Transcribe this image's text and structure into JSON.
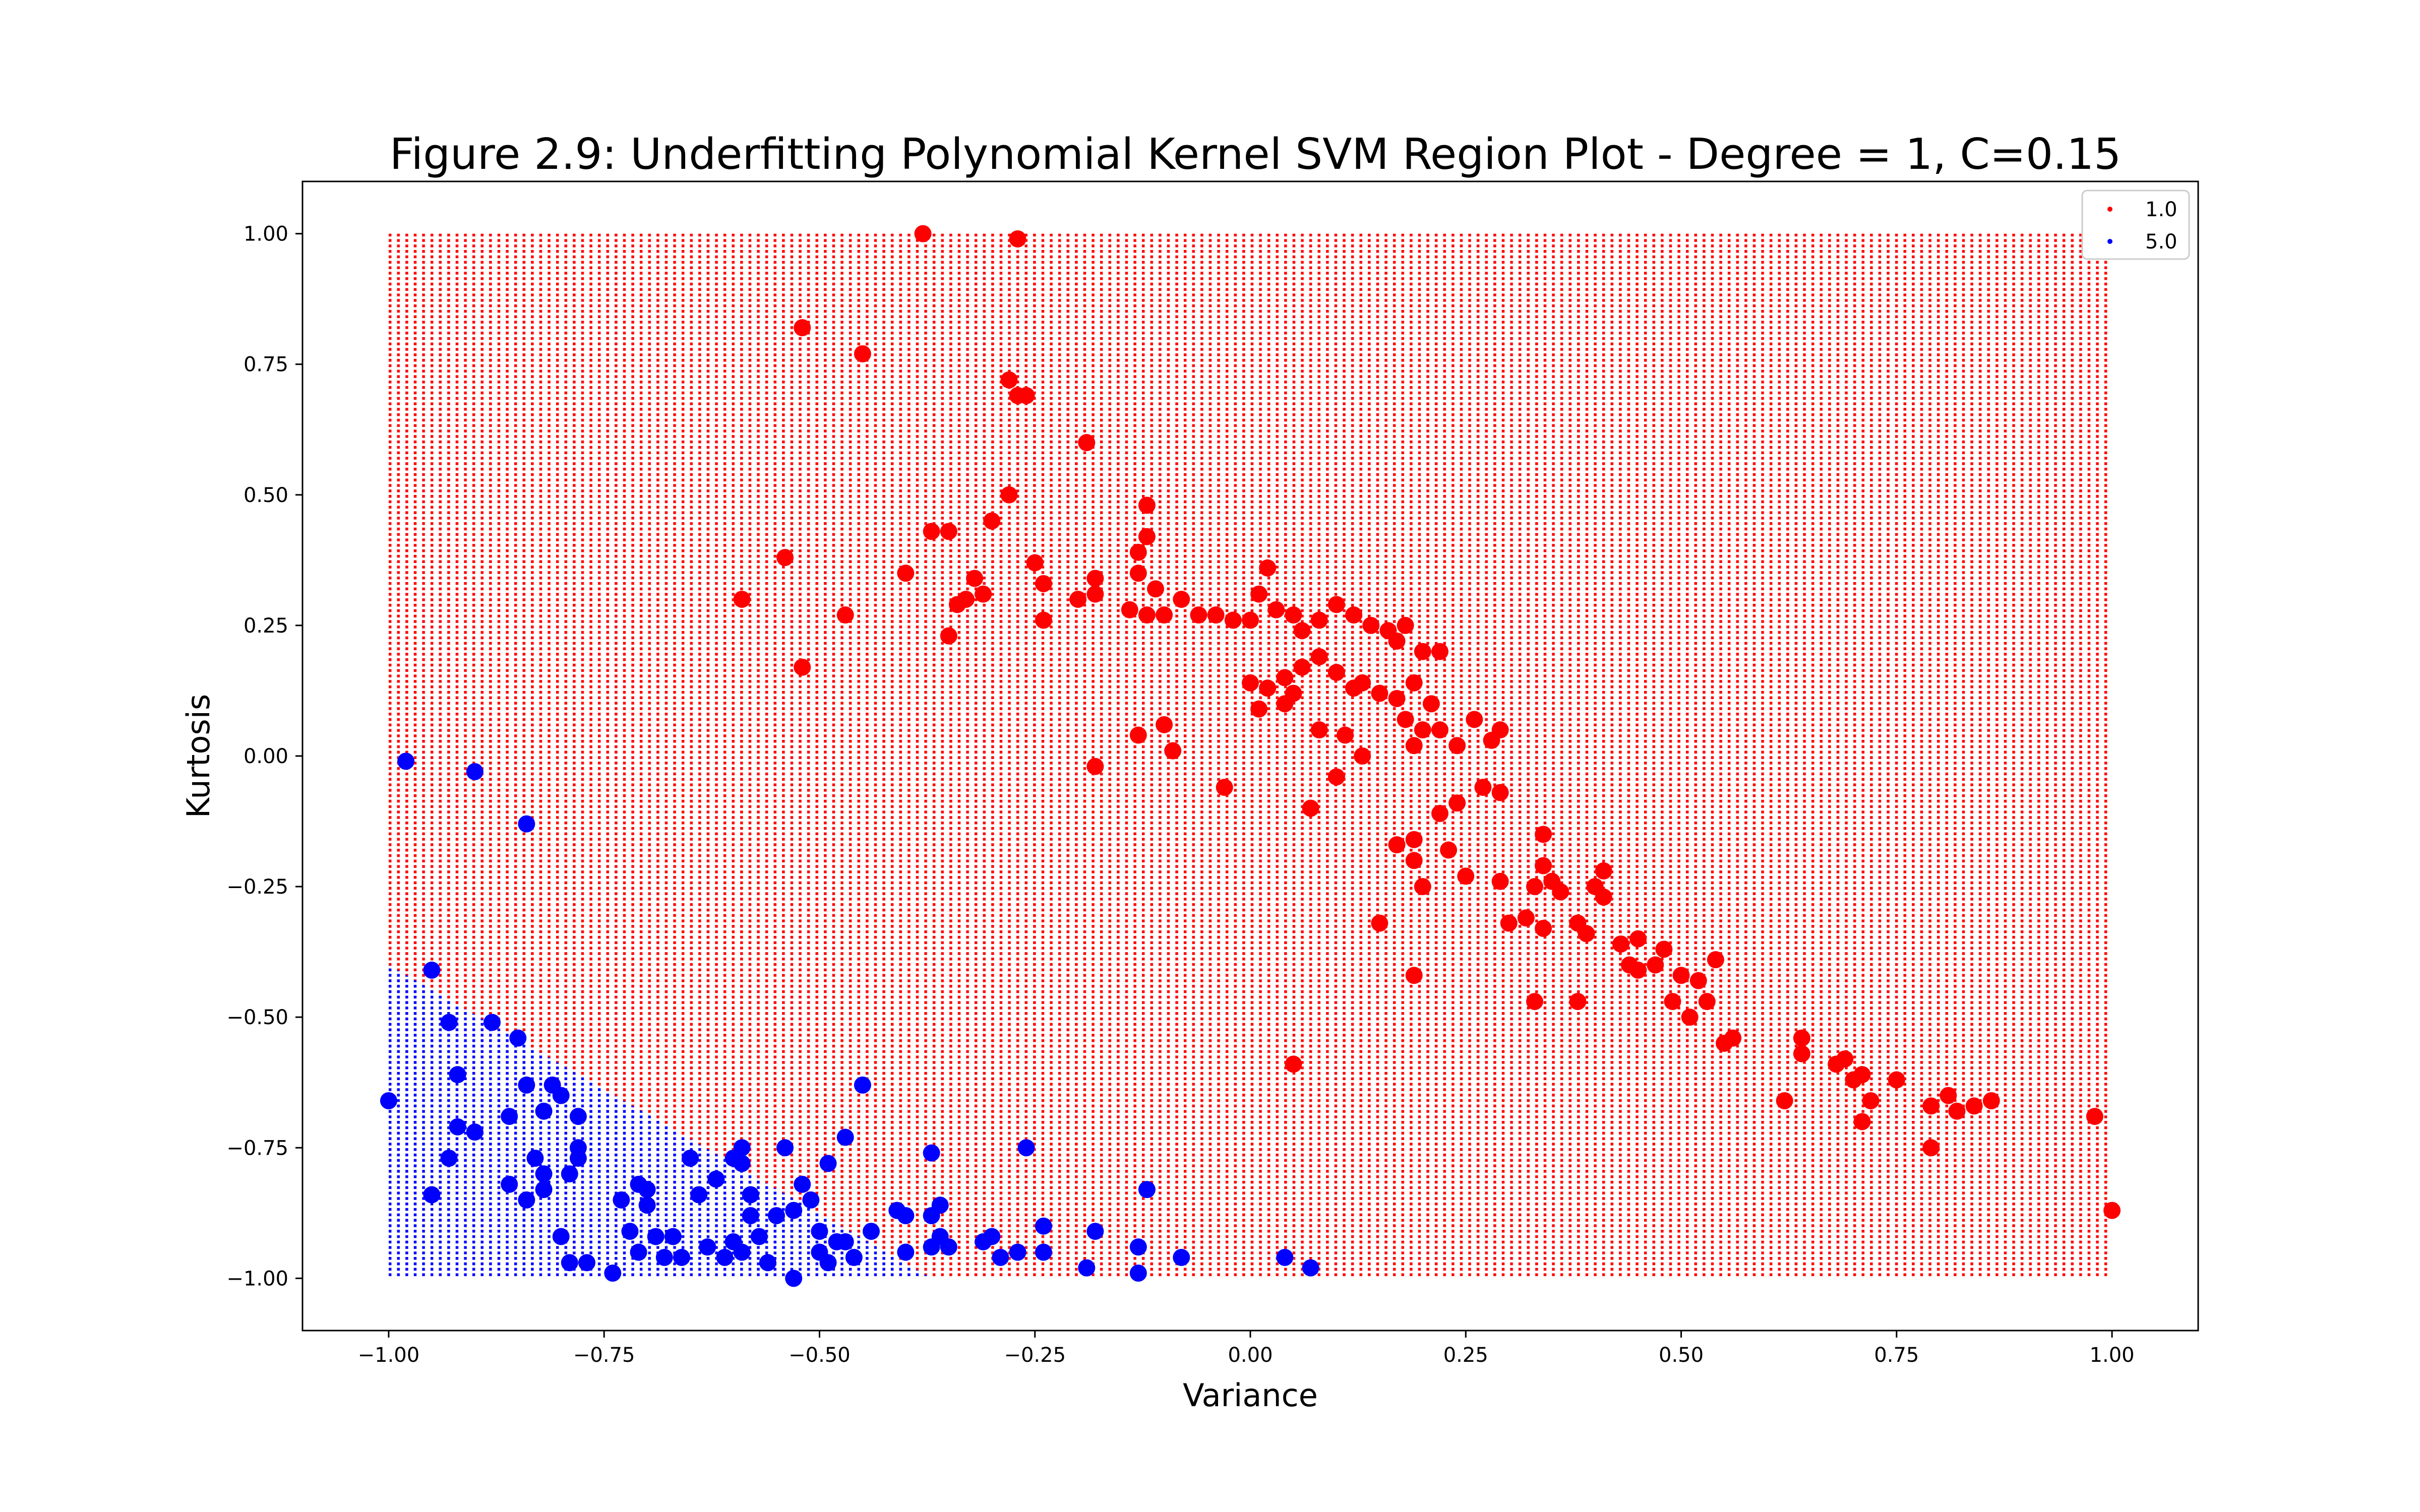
{
  "chart_data": {
    "type": "scatter",
    "title": "Figure 2.9: Underfitting Polynomial Kernel SVM Region Plot - Degree = 1, C=0.15",
    "xlabel": "Variance",
    "ylabel": "Kurtosis",
    "xlim": [
      -1.1,
      1.1
    ],
    "ylim": [
      -1.1,
      1.1
    ],
    "xticks": [
      -1.0,
      -0.75,
      -0.5,
      -0.25,
      0.0,
      0.25,
      0.5,
      0.75,
      1.0
    ],
    "xtick_labels": [
      "−1.00",
      "−0.75",
      "−0.50",
      "−0.25",
      "0.00",
      "0.25",
      "0.50",
      "0.75",
      "1.00"
    ],
    "yticks": [
      -1.0,
      -0.75,
      -0.5,
      -0.25,
      0.0,
      0.25,
      0.5,
      0.75,
      1.0
    ],
    "ytick_labels": [
      "−1.00",
      "−0.75",
      "−0.50",
      "−0.25",
      "0.00",
      "0.25",
      "0.50",
      "0.75",
      "1.00"
    ],
    "grid": false,
    "legend": {
      "placement": "upper-right",
      "entries": [
        {
          "label": "1.0",
          "color": "#ff0000"
        },
        {
          "label": "5.0",
          "color": "#0000ff"
        }
      ]
    },
    "region": {
      "description": "decision region grid from -1 to 1 on both axes, colored by predicted class",
      "x_range": [
        -1.0,
        1.0
      ],
      "y_range": [
        -1.0,
        1.0
      ],
      "boundary_points": [
        [
          -1.0,
          -0.4
        ],
        [
          -0.37,
          -1.0
        ]
      ],
      "class_below_boundary": "5.0",
      "class_above_boundary": "1.0"
    },
    "series": [
      {
        "name": "1.0",
        "color": "#ff0000",
        "points": [
          [
            -0.38,
            1.0
          ],
          [
            -0.27,
            0.99
          ],
          [
            -0.52,
            0.82
          ],
          [
            -0.45,
            0.77
          ],
          [
            -0.28,
            0.72
          ],
          [
            -0.27,
            0.69
          ],
          [
            -0.26,
            0.69
          ],
          [
            -0.19,
            0.6
          ],
          [
            -0.28,
            0.5
          ],
          [
            -0.12,
            0.48
          ],
          [
            -0.54,
            0.38
          ],
          [
            -0.4,
            0.35
          ],
          [
            -0.37,
            0.43
          ],
          [
            -0.35,
            0.43
          ],
          [
            -0.3,
            0.45
          ],
          [
            -0.25,
            0.37
          ],
          [
            -0.24,
            0.33
          ],
          [
            -0.32,
            0.34
          ],
          [
            -0.33,
            0.3
          ],
          [
            -0.34,
            0.29
          ],
          [
            -0.31,
            0.31
          ],
          [
            -0.35,
            0.23
          ],
          [
            -0.24,
            0.26
          ],
          [
            -0.59,
            0.3
          ],
          [
            -0.47,
            0.27
          ],
          [
            -0.52,
            0.17
          ],
          [
            -0.2,
            0.3
          ],
          [
            -0.18,
            0.31
          ],
          [
            -0.18,
            0.34
          ],
          [
            -0.13,
            0.39
          ],
          [
            -0.13,
            0.35
          ],
          [
            -0.12,
            0.42
          ],
          [
            -0.11,
            0.32
          ],
          [
            -0.14,
            0.28
          ],
          [
            -0.12,
            0.27
          ],
          [
            -0.1,
            0.27
          ],
          [
            -0.08,
            0.3
          ],
          [
            -0.06,
            0.27
          ],
          [
            -0.04,
            0.27
          ],
          [
            -0.02,
            0.26
          ],
          [
            0.0,
            0.26
          ],
          [
            0.01,
            0.31
          ],
          [
            0.02,
            0.36
          ],
          [
            0.03,
            0.28
          ],
          [
            0.05,
            0.27
          ],
          [
            0.06,
            0.24
          ],
          [
            0.08,
            0.26
          ],
          [
            0.1,
            0.29
          ],
          [
            0.12,
            0.27
          ],
          [
            0.14,
            0.25
          ],
          [
            0.16,
            0.24
          ],
          [
            0.18,
            0.25
          ],
          [
            0.17,
            0.22
          ],
          [
            0.2,
            0.2
          ],
          [
            0.22,
            0.2
          ],
          [
            0.0,
            0.14
          ],
          [
            0.02,
            0.13
          ],
          [
            0.04,
            0.15
          ],
          [
            0.05,
            0.12
          ],
          [
            0.06,
            0.17
          ],
          [
            0.08,
            0.19
          ],
          [
            0.1,
            0.16
          ],
          [
            0.12,
            0.13
          ],
          [
            0.13,
            0.14
          ],
          [
            0.15,
            0.12
          ],
          [
            0.17,
            0.11
          ],
          [
            0.19,
            0.14
          ],
          [
            0.21,
            0.1
          ],
          [
            0.01,
            0.09
          ],
          [
            0.04,
            0.1
          ],
          [
            -0.1,
            0.06
          ],
          [
            -0.09,
            0.01
          ],
          [
            -0.13,
            0.04
          ],
          [
            -0.18,
            -0.02
          ],
          [
            -0.03,
            -0.06
          ],
          [
            0.08,
            0.05
          ],
          [
            0.11,
            0.04
          ],
          [
            0.13,
            0.0
          ],
          [
            0.18,
            0.07
          ],
          [
            0.2,
            0.05
          ],
          [
            0.22,
            0.05
          ],
          [
            0.24,
            0.02
          ],
          [
            0.26,
            0.07
          ],
          [
            0.28,
            0.03
          ],
          [
            0.29,
            0.05
          ],
          [
            0.1,
            -0.04
          ],
          [
            0.07,
            -0.1
          ],
          [
            0.19,
            0.02
          ],
          [
            0.22,
            -0.11
          ],
          [
            0.24,
            -0.09
          ],
          [
            0.27,
            -0.06
          ],
          [
            0.29,
            -0.07
          ],
          [
            0.17,
            -0.17
          ],
          [
            0.19,
            -0.16
          ],
          [
            0.19,
            -0.2
          ],
          [
            0.2,
            -0.25
          ],
          [
            0.23,
            -0.18
          ],
          [
            0.25,
            -0.23
          ],
          [
            0.29,
            -0.24
          ],
          [
            0.3,
            -0.32
          ],
          [
            0.32,
            -0.31
          ],
          [
            0.34,
            -0.21
          ],
          [
            0.35,
            -0.24
          ],
          [
            0.33,
            -0.25
          ],
          [
            0.36,
            -0.26
          ],
          [
            0.34,
            -0.15
          ],
          [
            0.38,
            -0.32
          ],
          [
            0.39,
            -0.34
          ],
          [
            0.4,
            -0.25
          ],
          [
            0.41,
            -0.22
          ],
          [
            0.41,
            -0.27
          ],
          [
            0.34,
            -0.33
          ],
          [
            0.33,
            -0.47
          ],
          [
            0.38,
            -0.47
          ],
          [
            0.15,
            -0.32
          ],
          [
            0.19,
            -0.42
          ],
          [
            0.43,
            -0.36
          ],
          [
            0.45,
            -0.35
          ],
          [
            0.44,
            -0.4
          ],
          [
            0.45,
            -0.41
          ],
          [
            0.47,
            -0.4
          ],
          [
            0.48,
            -0.37
          ],
          [
            0.5,
            -0.42
          ],
          [
            0.52,
            -0.43
          ],
          [
            0.54,
            -0.39
          ],
          [
            0.49,
            -0.47
          ],
          [
            0.51,
            -0.5
          ],
          [
            0.53,
            -0.47
          ],
          [
            0.55,
            -0.55
          ],
          [
            0.56,
            -0.54
          ],
          [
            0.64,
            -0.54
          ],
          [
            0.64,
            -0.57
          ],
          [
            0.62,
            -0.66
          ],
          [
            0.68,
            -0.59
          ],
          [
            0.69,
            -0.58
          ],
          [
            0.7,
            -0.62
          ],
          [
            0.71,
            -0.61
          ],
          [
            0.72,
            -0.66
          ],
          [
            0.71,
            -0.7
          ],
          [
            0.75,
            -0.62
          ],
          [
            0.79,
            -0.67
          ],
          [
            0.79,
            -0.75
          ],
          [
            0.81,
            -0.65
          ],
          [
            0.82,
            -0.68
          ],
          [
            0.84,
            -0.67
          ],
          [
            0.86,
            -0.66
          ],
          [
            0.98,
            -0.69
          ],
          [
            1.0,
            -0.87
          ],
          [
            0.05,
            -0.59
          ]
        ]
      },
      {
        "name": "5.0",
        "color": "#0000ff",
        "points": [
          [
            -0.98,
            -0.01
          ],
          [
            -0.9,
            -0.03
          ],
          [
            -0.84,
            -0.13
          ],
          [
            -0.95,
            -0.41
          ],
          [
            -1.0,
            -0.66
          ],
          [
            -0.93,
            -0.51
          ],
          [
            -0.88,
            -0.51
          ],
          [
            -0.85,
            -0.54
          ],
          [
            -0.92,
            -0.61
          ],
          [
            -0.92,
            -0.71
          ],
          [
            -0.9,
            -0.72
          ],
          [
            -0.93,
            -0.77
          ],
          [
            -0.95,
            -0.84
          ],
          [
            -0.84,
            -0.63
          ],
          [
            -0.81,
            -0.63
          ],
          [
            -0.8,
            -0.65
          ],
          [
            -0.78,
            -0.69
          ],
          [
            -0.82,
            -0.68
          ],
          [
            -0.86,
            -0.69
          ],
          [
            -0.83,
            -0.77
          ],
          [
            -0.86,
            -0.82
          ],
          [
            -0.84,
            -0.85
          ],
          [
            -0.82,
            -0.83
          ],
          [
            -0.82,
            -0.8
          ],
          [
            -0.78,
            -0.75
          ],
          [
            -0.78,
            -0.77
          ],
          [
            -0.79,
            -0.8
          ],
          [
            -0.8,
            -0.92
          ],
          [
            -0.79,
            -0.97
          ],
          [
            -0.77,
            -0.97
          ],
          [
            -0.74,
            -0.99
          ],
          [
            -0.73,
            -0.85
          ],
          [
            -0.71,
            -0.82
          ],
          [
            -0.7,
            -0.83
          ],
          [
            -0.7,
            -0.86
          ],
          [
            -0.72,
            -0.91
          ],
          [
            -0.71,
            -0.95
          ],
          [
            -0.69,
            -0.92
          ],
          [
            -0.68,
            -0.96
          ],
          [
            -0.66,
            -0.96
          ],
          [
            -0.67,
            -0.92
          ],
          [
            -0.65,
            -0.77
          ],
          [
            -0.64,
            -0.84
          ],
          [
            -0.62,
            -0.81
          ],
          [
            -0.6,
            -0.77
          ],
          [
            -0.59,
            -0.75
          ],
          [
            -0.59,
            -0.78
          ],
          [
            -0.58,
            -0.84
          ],
          [
            -0.58,
            -0.88
          ],
          [
            -0.6,
            -0.93
          ],
          [
            -0.59,
            -0.95
          ],
          [
            -0.57,
            -0.92
          ],
          [
            -0.56,
            -0.97
          ],
          [
            -0.55,
            -0.88
          ],
          [
            -0.54,
            -0.75
          ],
          [
            -0.53,
            -0.87
          ],
          [
            -0.52,
            -0.82
          ],
          [
            -0.51,
            -0.85
          ],
          [
            -0.5,
            -0.91
          ],
          [
            -0.5,
            -0.95
          ],
          [
            -0.49,
            -0.97
          ],
          [
            -0.48,
            -0.93
          ],
          [
            -0.47,
            -0.93
          ],
          [
            -0.46,
            -0.96
          ],
          [
            -0.49,
            -0.78
          ],
          [
            -0.47,
            -0.73
          ],
          [
            -0.45,
            -0.63
          ],
          [
            -0.44,
            -0.91
          ],
          [
            -0.41,
            -0.87
          ],
          [
            -0.4,
            -0.88
          ],
          [
            -0.4,
            -0.95
          ],
          [
            -0.37,
            -0.76
          ],
          [
            -0.37,
            -0.88
          ],
          [
            -0.36,
            -0.86
          ],
          [
            -0.36,
            -0.92
          ],
          [
            -0.37,
            -0.94
          ],
          [
            -0.35,
            -0.94
          ],
          [
            -0.53,
            -1.0
          ],
          [
            -0.61,
            -0.96
          ],
          [
            -0.63,
            -0.94
          ],
          [
            -0.26,
            -0.75
          ],
          [
            -0.24,
            -0.9
          ],
          [
            -0.24,
            -0.95
          ],
          [
            -0.27,
            -0.95
          ],
          [
            -0.29,
            -0.96
          ],
          [
            -0.3,
            -0.92
          ],
          [
            -0.31,
            -0.93
          ],
          [
            -0.18,
            -0.91
          ],
          [
            -0.19,
            -0.98
          ],
          [
            -0.13,
            -0.94
          ],
          [
            -0.12,
            -0.83
          ],
          [
            -0.13,
            -0.99
          ],
          [
            -0.08,
            -0.96
          ],
          [
            0.04,
            -0.96
          ],
          [
            0.07,
            -0.98
          ]
        ]
      }
    ]
  }
}
